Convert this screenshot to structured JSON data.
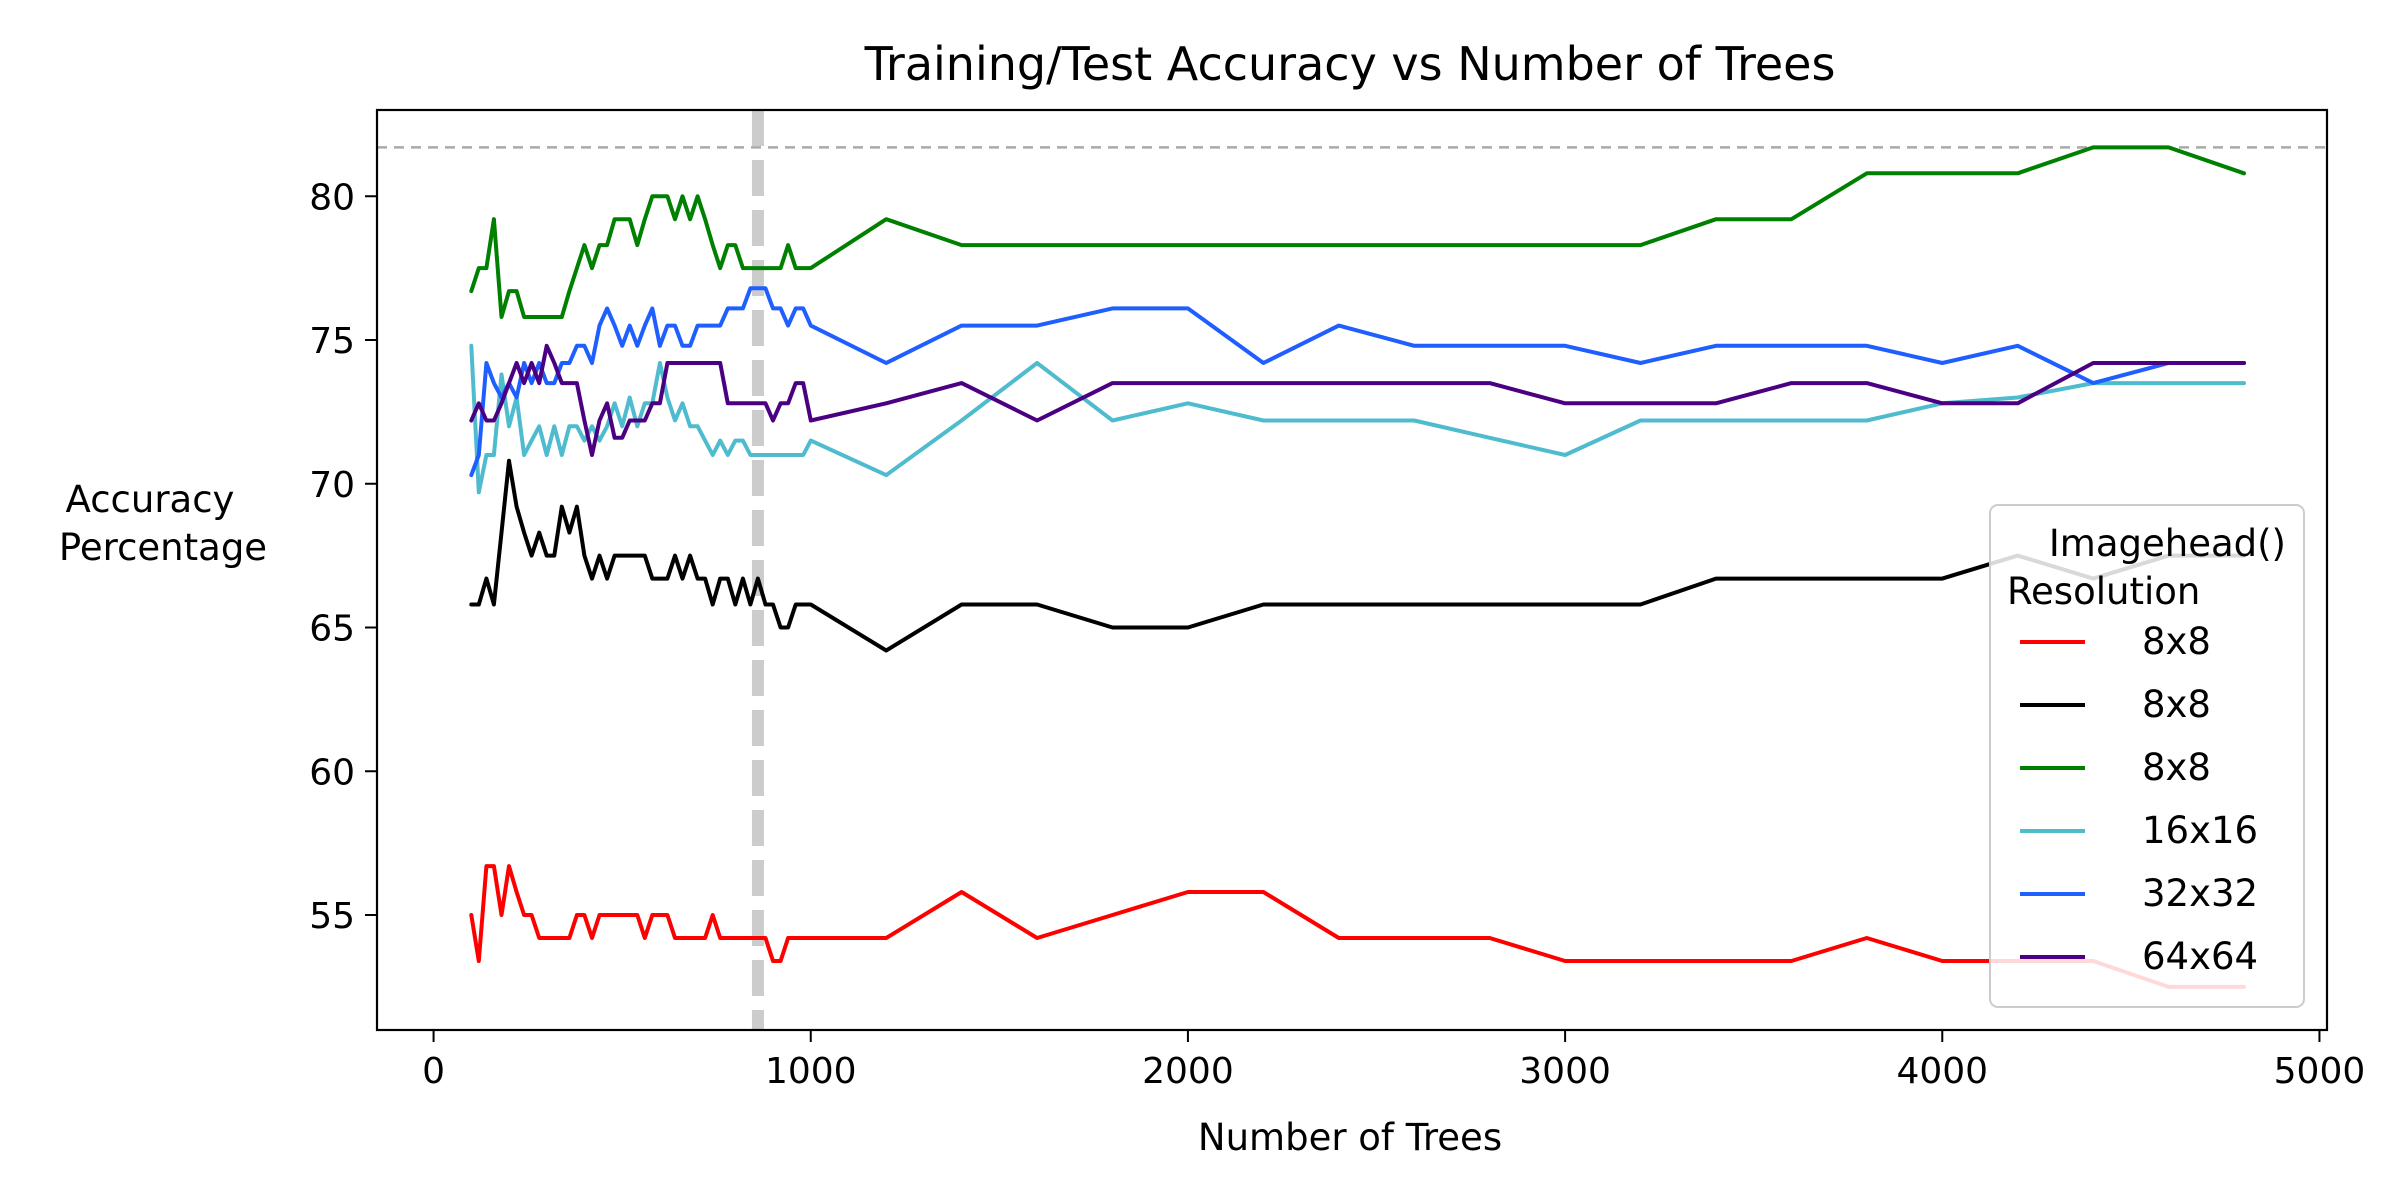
{
  "chart_data": {
    "type": "line",
    "title": "Training/Test Accuracy vs Number of Trees",
    "xlabel": "Number of Trees",
    "ylabel_lines": [
      "Accuracy",
      "Percentage"
    ],
    "xlim": [
      -150,
      5020
    ],
    "ylim": [
      51.0,
      83.0
    ],
    "x_ticks": [
      0,
      1000,
      2000,
      3000,
      4000,
      5000
    ],
    "x_tick_labels": [
      "0",
      "1000",
      "2000",
      "3000",
      "4000",
      "5000"
    ],
    "y_ticks": [
      55,
      60,
      65,
      70,
      75,
      80
    ],
    "y_tick_labels": [
      "55",
      "60",
      "65",
      "70",
      "75",
      "80"
    ],
    "reference_hline": {
      "y": 81.7,
      "color": "#aaaaaa",
      "style": "dashed"
    },
    "reference_vline": {
      "x": 860,
      "color": "#cccccc",
      "style": "dashed"
    },
    "legend": {
      "title_lines": [
        "Imagehead()",
        "Resolution"
      ],
      "placement": "lower-right"
    },
    "series": [
      {
        "name": "8x8",
        "color": "#ff0000",
        "x": [
          100,
          120,
          140,
          160,
          180,
          200,
          220,
          240,
          260,
          280,
          300,
          320,
          340,
          360,
          380,
          400,
          420,
          440,
          460,
          480,
          500,
          520,
          540,
          560,
          580,
          600,
          620,
          640,
          660,
          680,
          700,
          720,
          740,
          760,
          780,
          800,
          820,
          840,
          860,
          880,
          900,
          920,
          940,
          960,
          980,
          1000,
          1200,
          1400,
          1600,
          1800,
          2000,
          2200,
          2400,
          2600,
          2800,
          3000,
          3200,
          3400,
          3600,
          3800,
          4000,
          4200,
          4400,
          4600,
          4800
        ],
        "y": [
          55.0,
          53.4,
          56.7,
          56.7,
          55.0,
          56.7,
          55.8,
          55.0,
          55.0,
          54.2,
          54.2,
          54.2,
          54.2,
          54.2,
          55.0,
          55.0,
          54.2,
          55.0,
          55.0,
          55.0,
          55.0,
          55.0,
          55.0,
          54.2,
          55.0,
          55.0,
          55.0,
          54.2,
          54.2,
          54.2,
          54.2,
          54.2,
          55.0,
          54.2,
          54.2,
          54.2,
          54.2,
          54.2,
          54.2,
          54.2,
          53.4,
          53.4,
          54.2,
          54.2,
          54.2,
          54.2,
          54.2,
          55.8,
          54.2,
          55.0,
          55.8,
          55.8,
          54.2,
          54.2,
          54.2,
          53.4,
          53.4,
          53.4,
          53.4,
          54.2,
          53.4,
          53.4,
          53.4,
          52.5,
          52.5
        ]
      },
      {
        "name": "8x8",
        "color": "#000000",
        "x": [
          100,
          120,
          140,
          160,
          180,
          200,
          220,
          240,
          260,
          280,
          300,
          320,
          340,
          360,
          380,
          400,
          420,
          440,
          460,
          480,
          500,
          520,
          540,
          560,
          580,
          600,
          620,
          640,
          660,
          680,
          700,
          720,
          740,
          760,
          780,
          800,
          820,
          840,
          860,
          880,
          900,
          920,
          940,
          960,
          980,
          1000,
          1200,
          1400,
          1600,
          1800,
          2000,
          2200,
          2400,
          2600,
          2800,
          3000,
          3200,
          3400,
          3600,
          3800,
          4000,
          4200,
          4400,
          4600,
          4800
        ],
        "y": [
          65.8,
          65.8,
          66.7,
          65.8,
          68.3,
          70.8,
          69.2,
          68.3,
          67.5,
          68.3,
          67.5,
          67.5,
          69.2,
          68.3,
          69.2,
          67.5,
          66.7,
          67.5,
          66.7,
          67.5,
          67.5,
          67.5,
          67.5,
          67.5,
          66.7,
          66.7,
          66.7,
          67.5,
          66.7,
          67.5,
          66.7,
          66.7,
          65.8,
          66.7,
          66.7,
          65.8,
          66.7,
          65.8,
          66.7,
          65.8,
          65.8,
          65.0,
          65.0,
          65.8,
          65.8,
          65.8,
          64.2,
          65.8,
          65.8,
          65.0,
          65.0,
          65.8,
          65.8,
          65.8,
          65.8,
          65.8,
          65.8,
          66.7,
          66.7,
          66.7,
          66.7,
          67.5,
          66.7,
          67.5,
          67.5
        ]
      },
      {
        "name": "8x8",
        "color": "#008000",
        "x": [
          100,
          120,
          140,
          160,
          180,
          200,
          220,
          240,
          260,
          280,
          300,
          320,
          340,
          360,
          380,
          400,
          420,
          440,
          460,
          480,
          500,
          520,
          540,
          560,
          580,
          600,
          620,
          640,
          660,
          680,
          700,
          720,
          740,
          760,
          780,
          800,
          820,
          840,
          860,
          880,
          900,
          920,
          940,
          960,
          980,
          1000,
          1200,
          1400,
          1600,
          1800,
          2000,
          2200,
          2400,
          2600,
          2800,
          3000,
          3200,
          3400,
          3600,
          3800,
          4000,
          4200,
          4400,
          4600,
          4800
        ],
        "y": [
          76.7,
          77.5,
          77.5,
          79.2,
          75.8,
          76.7,
          76.7,
          75.8,
          75.8,
          75.8,
          75.8,
          75.8,
          75.8,
          76.7,
          77.5,
          78.3,
          77.5,
          78.3,
          78.3,
          79.2,
          79.2,
          79.2,
          78.3,
          79.2,
          80.0,
          80.0,
          80.0,
          79.2,
          80.0,
          79.2,
          80.0,
          79.2,
          78.3,
          77.5,
          78.3,
          78.3,
          77.5,
          77.5,
          77.5,
          77.5,
          77.5,
          77.5,
          78.3,
          77.5,
          77.5,
          77.5,
          79.2,
          78.3,
          78.3,
          78.3,
          78.3,
          78.3,
          78.3,
          78.3,
          78.3,
          78.3,
          78.3,
          79.2,
          79.2,
          80.8,
          80.8,
          80.8,
          81.7,
          81.7,
          80.8
        ]
      },
      {
        "name": "16x16",
        "color": "#4fbbcf",
        "x": [
          100,
          120,
          140,
          160,
          180,
          200,
          220,
          240,
          260,
          280,
          300,
          320,
          340,
          360,
          380,
          400,
          420,
          440,
          460,
          480,
          500,
          520,
          540,
          560,
          580,
          600,
          620,
          640,
          660,
          680,
          700,
          720,
          740,
          760,
          780,
          800,
          820,
          840,
          860,
          880,
          900,
          920,
          940,
          960,
          980,
          1000,
          1200,
          1400,
          1600,
          1800,
          2000,
          2200,
          2400,
          2600,
          2800,
          3000,
          3200,
          3400,
          3600,
          3800,
          4000,
          4200,
          4400,
          4600,
          4800
        ],
        "y": [
          74.8,
          69.7,
          71.0,
          71.0,
          73.8,
          72.0,
          73.0,
          71.0,
          71.5,
          72.0,
          71.0,
          72.0,
          71.0,
          72.0,
          72.0,
          71.5,
          72.0,
          71.5,
          72.0,
          72.8,
          72.0,
          73.0,
          72.0,
          72.8,
          72.8,
          74.2,
          73.0,
          72.2,
          72.8,
          72.0,
          72.0,
          71.5,
          71.0,
          71.5,
          71.0,
          71.5,
          71.5,
          71.0,
          71.0,
          71.0,
          71.0,
          71.0,
          71.0,
          71.0,
          71.0,
          71.5,
          70.3,
          72.2,
          74.2,
          72.2,
          72.8,
          72.2,
          72.2,
          72.2,
          71.6,
          71.0,
          72.2,
          72.2,
          72.2,
          72.2,
          72.8,
          73.0,
          73.5,
          73.5,
          73.5
        ]
      },
      {
        "name": "32x32",
        "color": "#1f5fff",
        "x": [
          100,
          120,
          140,
          160,
          180,
          200,
          220,
          240,
          260,
          280,
          300,
          320,
          340,
          360,
          380,
          400,
          420,
          440,
          460,
          480,
          500,
          520,
          540,
          560,
          580,
          600,
          620,
          640,
          660,
          680,
          700,
          720,
          740,
          760,
          780,
          800,
          820,
          840,
          860,
          880,
          900,
          920,
          940,
          960,
          980,
          1000,
          1200,
          1400,
          1600,
          1800,
          2000,
          2200,
          2400,
          2600,
          2800,
          3000,
          3200,
          3400,
          3600,
          3800,
          4000,
          4200,
          4400,
          4600,
          4800
        ],
        "y": [
          70.3,
          71.0,
          74.2,
          73.5,
          73.0,
          73.5,
          73.0,
          74.2,
          73.5,
          74.2,
          73.5,
          73.5,
          74.2,
          74.2,
          74.8,
          74.8,
          74.2,
          75.5,
          76.1,
          75.5,
          74.8,
          75.5,
          74.8,
          75.5,
          76.1,
          74.8,
          75.5,
          75.5,
          74.8,
          74.8,
          75.5,
          75.5,
          75.5,
          75.5,
          76.1,
          76.1,
          76.1,
          76.8,
          76.8,
          76.8,
          76.1,
          76.1,
          75.5,
          76.1,
          76.1,
          75.5,
          74.2,
          75.5,
          75.5,
          76.1,
          76.1,
          74.2,
          75.5,
          74.8,
          74.8,
          74.8,
          74.2,
          74.8,
          74.8,
          74.8,
          74.2,
          74.8,
          73.5,
          74.2,
          74.2
        ]
      },
      {
        "name": "64x64",
        "color": "#4b0082",
        "x": [
          100,
          120,
          140,
          160,
          180,
          200,
          220,
          240,
          260,
          280,
          300,
          320,
          340,
          360,
          380,
          400,
          420,
          440,
          460,
          480,
          500,
          520,
          540,
          560,
          580,
          600,
          620,
          640,
          660,
          680,
          700,
          720,
          740,
          760,
          780,
          800,
          820,
          840,
          860,
          880,
          900,
          920,
          940,
          960,
          980,
          1000,
          1200,
          1400,
          1600,
          1800,
          2000,
          2200,
          2400,
          2600,
          2800,
          3000,
          3200,
          3400,
          3600,
          3800,
          4000,
          4200,
          4400,
          4600,
          4800
        ],
        "y": [
          72.2,
          72.8,
          72.2,
          72.2,
          72.8,
          73.5,
          74.2,
          73.5,
          74.2,
          73.5,
          74.8,
          74.2,
          73.5,
          73.5,
          73.5,
          72.2,
          71.0,
          72.2,
          72.8,
          71.6,
          71.6,
          72.2,
          72.2,
          72.2,
          72.8,
          72.8,
          74.2,
          74.2,
          74.2,
          74.2,
          74.2,
          74.2,
          74.2,
          74.2,
          72.8,
          72.8,
          72.8,
          72.8,
          72.8,
          72.8,
          72.2,
          72.8,
          72.8,
          73.5,
          73.5,
          72.2,
          72.8,
          73.5,
          72.2,
          73.5,
          73.5,
          73.5,
          73.5,
          73.5,
          73.5,
          72.8,
          72.8,
          72.8,
          73.5,
          73.5,
          72.8,
          72.8,
          74.2,
          74.2,
          74.2
        ]
      }
    ]
  }
}
